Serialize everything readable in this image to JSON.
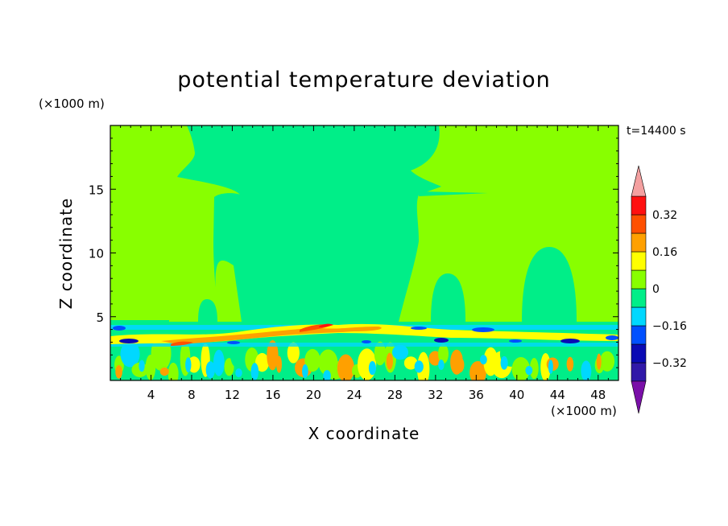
{
  "chart_data": {
    "type": "heatmap",
    "title": "potential temperature deviation",
    "xlabel": "X coordinate",
    "ylabel": "Z coordinate",
    "x_unit": "(×1000 m)",
    "y_unit": "(×1000 m)",
    "time_label": "t=14400 s",
    "xlim": [
      0,
      50
    ],
    "ylim": [
      0,
      20
    ],
    "x_ticks": [
      4,
      8,
      12,
      16,
      20,
      24,
      28,
      32,
      36,
      40,
      44,
      48
    ],
    "y_ticks": [
      5,
      10,
      15
    ],
    "colorbar": {
      "levels": [
        -0.48,
        -0.4,
        -0.32,
        -0.24,
        -0.16,
        -0.08,
        0,
        0.08,
        0.16,
        0.24,
        0.32,
        0.4
      ],
      "labels": [
        {
          "value": 0.32,
          "text": "0.32"
        },
        {
          "value": 0.16,
          "text": "0.16"
        },
        {
          "value": 0,
          "text": "0"
        },
        {
          "value": -0.16,
          "text": "−0.16"
        },
        {
          "value": -0.32,
          "text": "−0.32"
        }
      ],
      "colors": [
        "#7a0fa8",
        "#3018a8",
        "#0a0ab4",
        "#0050ff",
        "#00d8ff",
        "#00ee88",
        "#88ff00",
        "#ffff00",
        "#ffa000",
        "#ff5000",
        "#ff1010",
        "#f4a0a0"
      ],
      "extend": "both"
    },
    "field_summary": {
      "background_band": "0 to 0.08 above Z≈5 (light green) with cooler plumes near 0",
      "shear_layer_z": [
        2.5,
        4.5
      ],
      "shear_layer_range": [
        -0.4,
        0.32
      ],
      "lower_layer_range": [
        -0.16,
        0.16
      ]
    }
  }
}
